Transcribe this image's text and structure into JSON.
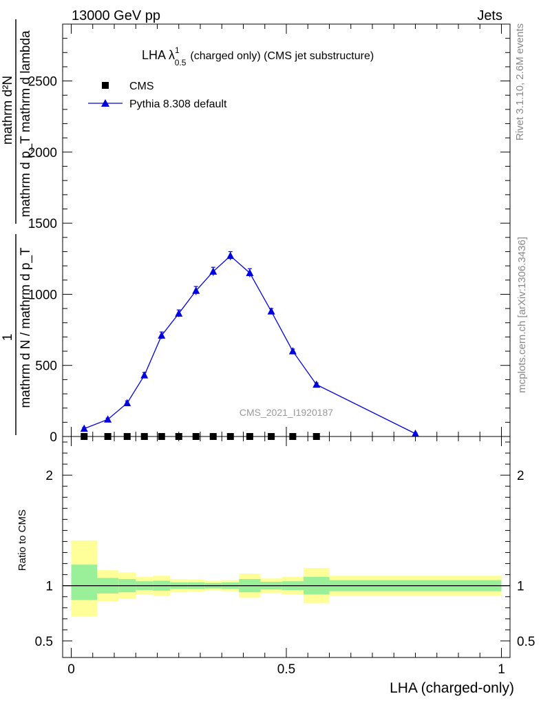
{
  "header": {
    "left": "13000 GeV pp",
    "right": "Jets"
  },
  "side_labels": {
    "rivet": "Rivet 3.1.10,  2.6M events",
    "mcplots": "mcplots.cern.ch [arXiv:1306.3436]"
  },
  "colors": {
    "pythia": "#0000dd",
    "cms": "#000000",
    "band_inner": "#99f099",
    "band_outer": "#ffff99",
    "watermark": "#999999",
    "side_text": "#888888"
  },
  "chart_data": [
    {
      "type": "line",
      "title_main": "LHA λ",
      "title_sup": "1",
      "title_sub": "0.5",
      "title_rest": "(charged only) (CMS jet substructure)",
      "ylabel_numerator": "mathrm d²N",
      "ylabel_denominator": "mathrm d p_T mathrm d lambda",
      "ylabel_prefix_num": "1",
      "ylabel_prefix_den": "mathrm d N / mathrm d p_T",
      "ylim": [
        0,
        2900
      ],
      "xlim": [
        -0.02,
        1.02
      ],
      "yticks": [
        0,
        500,
        1000,
        1500,
        2000,
        2500
      ],
      "ytick_labels": [
        "0",
        "500",
        "1000",
        "1500",
        "2000",
        "2500"
      ],
      "watermark": "CMS_2021_I1920187",
      "legend": {
        "placement": "top-left",
        "entries": [
          {
            "label": "CMS",
            "marker": "square"
          },
          {
            "label": "Pythia 8.308 default",
            "marker": "triangle"
          }
        ]
      },
      "series": [
        {
          "name": "CMS",
          "x": [
            0.03,
            0.085,
            0.13,
            0.17,
            0.21,
            0.25,
            0.29,
            0.33,
            0.37,
            0.415,
            0.465,
            0.515,
            0.57
          ],
          "values": [
            0,
            0,
            0,
            0,
            0,
            0,
            0,
            0,
            0,
            0,
            0,
            0,
            0
          ]
        },
        {
          "name": "Pythia 8.308 default",
          "x": [
            0.03,
            0.085,
            0.13,
            0.17,
            0.21,
            0.25,
            0.29,
            0.33,
            0.37,
            0.415,
            0.465,
            0.515,
            0.57,
            0.8
          ],
          "values": [
            55,
            120,
            235,
            430,
            710,
            865,
            1025,
            1160,
            1270,
            1150,
            880,
            600,
            365,
            20
          ],
          "errors": [
            8,
            10,
            15,
            20,
            25,
            25,
            30,
            30,
            30,
            30,
            20,
            15,
            12,
            5
          ]
        }
      ]
    },
    {
      "type": "area",
      "ylabel": "Ratio to CMS",
      "xlabel": "LHA (charged-only)",
      "xlim": [
        -0.02,
        1.02
      ],
      "ylim": [
        0.35,
        2.35
      ],
      "yticks": [
        0.5,
        1,
        2
      ],
      "ytick_labels": [
        "0.5",
        "1",
        "2"
      ],
      "xticks": [
        0,
        0.5,
        1
      ],
      "xtick_labels": [
        "0",
        "0.5",
        "1"
      ],
      "reference_line": 1,
      "bins": [
        {
          "x0": 0.0,
          "x1": 0.06,
          "outer": [
            0.72,
            1.41
          ],
          "inner": [
            0.87,
            1.19
          ]
        },
        {
          "x0": 0.06,
          "x1": 0.11,
          "outer": [
            0.86,
            1.14
          ],
          "inner": [
            0.93,
            1.07
          ]
        },
        {
          "x0": 0.11,
          "x1": 0.15,
          "outer": [
            0.88,
            1.12
          ],
          "inner": [
            0.94,
            1.06
          ]
        },
        {
          "x0": 0.15,
          "x1": 0.19,
          "outer": [
            0.92,
            1.08
          ],
          "inner": [
            0.96,
            1.04
          ]
        },
        {
          "x0": 0.19,
          "x1": 0.23,
          "outer": [
            0.91,
            1.09
          ],
          "inner": [
            0.955,
            1.045
          ]
        },
        {
          "x0": 0.23,
          "x1": 0.27,
          "outer": [
            0.94,
            1.06
          ],
          "inner": [
            0.97,
            1.03
          ]
        },
        {
          "x0": 0.27,
          "x1": 0.31,
          "outer": [
            0.945,
            1.055
          ],
          "inner": [
            0.97,
            1.03
          ]
        },
        {
          "x0": 0.31,
          "x1": 0.35,
          "outer": [
            0.955,
            1.045
          ],
          "inner": [
            0.975,
            1.025
          ]
        },
        {
          "x0": 0.35,
          "x1": 0.39,
          "outer": [
            0.95,
            1.05
          ],
          "inner": [
            0.97,
            1.03
          ]
        },
        {
          "x0": 0.39,
          "x1": 0.44,
          "outer": [
            0.89,
            1.11
          ],
          "inner": [
            0.94,
            1.06
          ]
        },
        {
          "x0": 0.44,
          "x1": 0.49,
          "outer": [
            0.935,
            1.065
          ],
          "inner": [
            0.965,
            1.035
          ]
        },
        {
          "x0": 0.49,
          "x1": 0.54,
          "outer": [
            0.92,
            1.08
          ],
          "inner": [
            0.96,
            1.04
          ]
        },
        {
          "x0": 0.54,
          "x1": 0.6,
          "outer": [
            0.84,
            1.16
          ],
          "inner": [
            0.92,
            1.08
          ]
        },
        {
          "x0": 0.6,
          "x1": 1.0,
          "outer": [
            0.91,
            1.09
          ],
          "inner": [
            0.95,
            1.05
          ]
        }
      ]
    }
  ]
}
